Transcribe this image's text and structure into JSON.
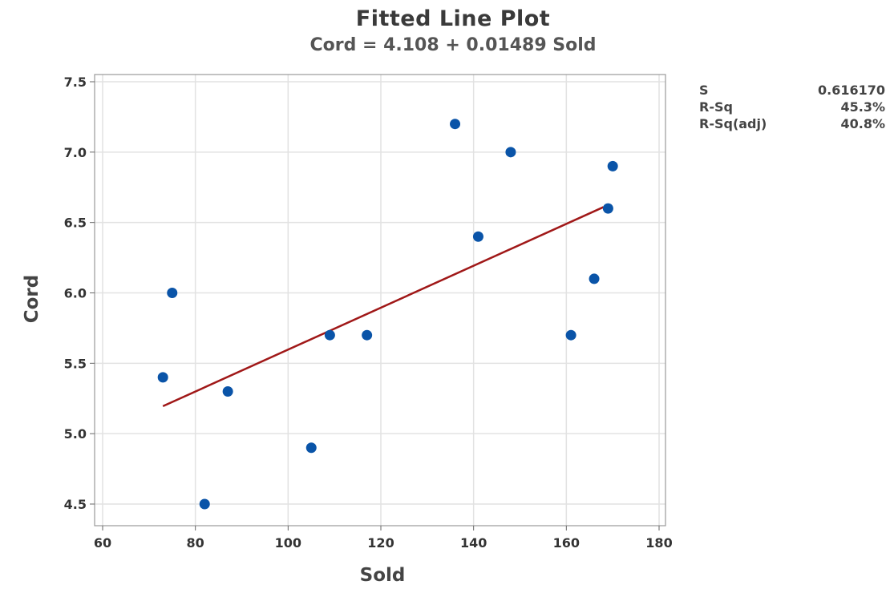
{
  "chart_data": {
    "type": "scatter",
    "title": "Fitted Line Plot",
    "subtitle": "Cord = 4.108 + 0.01489 Sold",
    "xlabel": "Sold",
    "ylabel": "Cord",
    "xlim": [
      58.3,
      181.7
    ],
    "ylim": [
      4.38,
      7.55
    ],
    "xticks": [
      60,
      80,
      100,
      120,
      140,
      160,
      180
    ],
    "yticks": [
      4.5,
      5.0,
      5.5,
      6.0,
      6.5,
      7.0,
      7.5
    ],
    "xtick_labels": [
      "60",
      "80",
      "100",
      "120",
      "140",
      "160",
      "180"
    ],
    "ytick_labels": [
      "4.5",
      "5.0",
      "5.5",
      "6.0",
      "6.5",
      "7.0",
      "7.5"
    ],
    "grid": true,
    "points": [
      {
        "x": 73,
        "y": 5.4
      },
      {
        "x": 75,
        "y": 6.0
      },
      {
        "x": 82,
        "y": 4.5
      },
      {
        "x": 87,
        "y": 5.3
      },
      {
        "x": 105,
        "y": 4.9
      },
      {
        "x": 109,
        "y": 5.7
      },
      {
        "x": 117,
        "y": 5.7
      },
      {
        "x": 136,
        "y": 7.2
      },
      {
        "x": 141,
        "y": 6.4
      },
      {
        "x": 148,
        "y": 7.0
      },
      {
        "x": 161,
        "y": 5.7
      },
      {
        "x": 166,
        "y": 6.1
      },
      {
        "x": 169,
        "y": 6.6
      },
      {
        "x": 170,
        "y": 6.9
      }
    ],
    "fit": {
      "intercept": 4.108,
      "slope": 0.01489,
      "x_range": [
        73,
        168
      ]
    },
    "colors": {
      "points": "#0a54a8",
      "fit_line": "#a01818",
      "grid": "#e2e2e2"
    },
    "stats": [
      {
        "label": "S",
        "value": "0.616170"
      },
      {
        "label": "R-Sq",
        "value": "45.3%"
      },
      {
        "label": "R-Sq(adj)",
        "value": "40.8%"
      }
    ]
  }
}
